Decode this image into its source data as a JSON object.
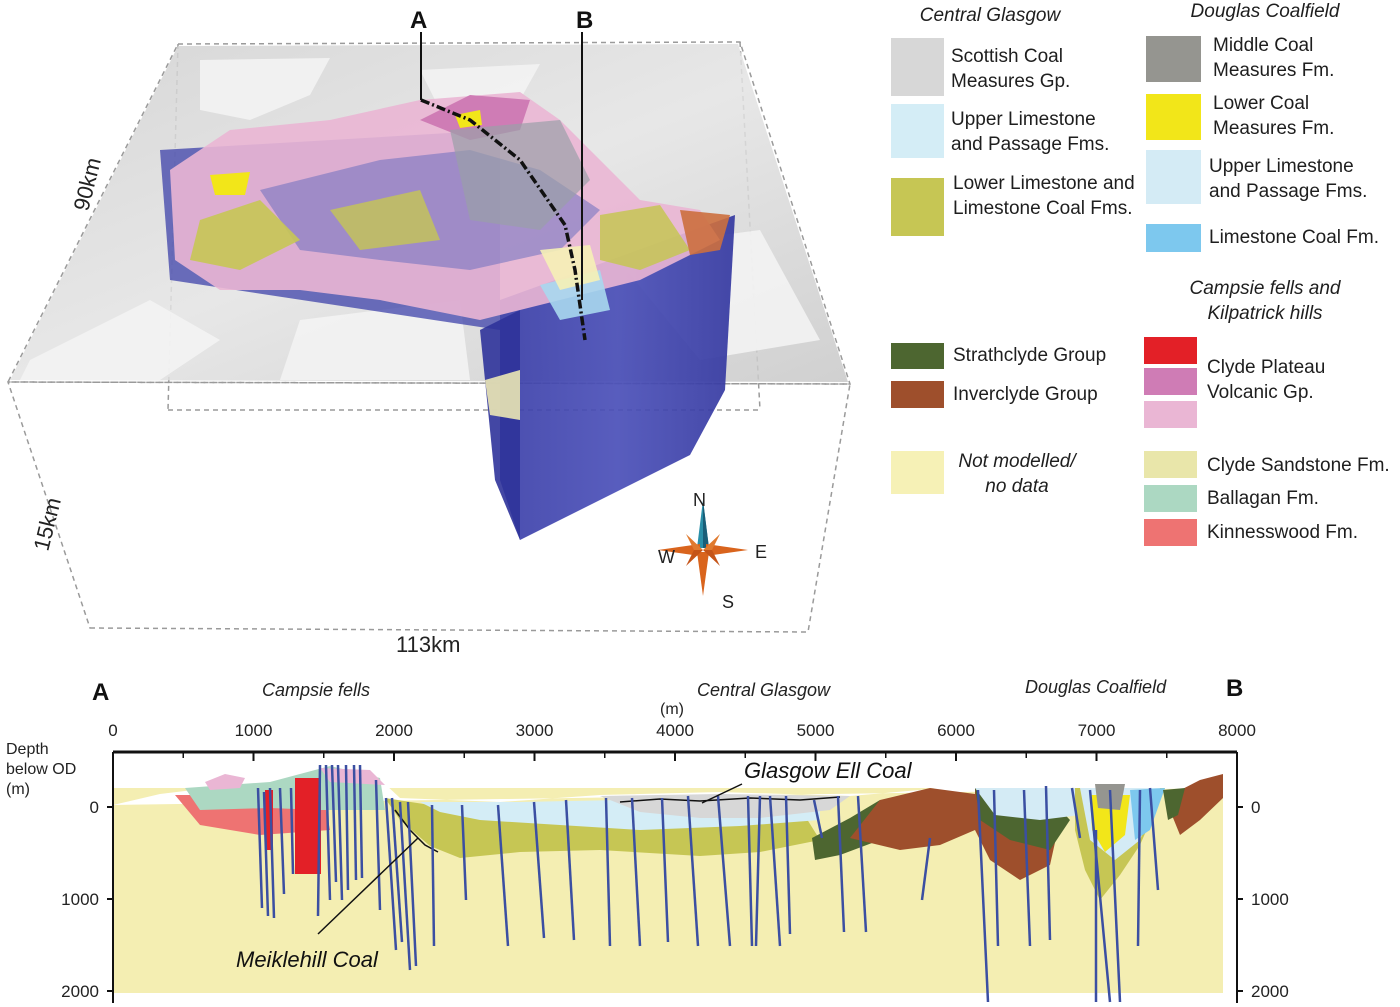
{
  "block": {
    "width_label": "113km",
    "length_label": "90km",
    "depth_label": "15km",
    "line_a": "A",
    "line_b": "B"
  },
  "compass": {
    "n": "N",
    "s": "S",
    "e": "E",
    "w": "W"
  },
  "legend": {
    "groups": {
      "central_glasgow": "Central Glasgow",
      "douglas_coalfield": "Douglas Coalfield",
      "campsie_kilpatrick": "Campsie fells and Kilpatrick hills"
    },
    "central": [
      {
        "label": "Scottish Coal Measures Gp.",
        "color": "#d7d7d7"
      },
      {
        "label": "Upper Limestone and Passage Fms.",
        "color": "#d4edf6"
      },
      {
        "label": "Lower Limestone and Limestone Coal Fms.",
        "color": "#c6c654"
      }
    ],
    "douglas": [
      {
        "label": "Middle Coal Measures Fm.",
        "color": "#959590"
      },
      {
        "label": "Lower Coal Measures Fm.",
        "color": "#f2e619"
      },
      {
        "label": "Upper Limestone and Passage Fms.",
        "color": "#d4ebf5"
      },
      {
        "label": "Limestone Coal Fm.",
        "color": "#7dc8ee"
      }
    ],
    "lower_left": [
      {
        "label": "Strathclyde Group",
        "color": "#4d6630"
      },
      {
        "label": "Inverclyde Group",
        "color": "#9e4f2c"
      },
      {
        "label": "Not modelled/ no data",
        "color": "#f6f1b6"
      }
    ],
    "campsie": {
      "volcanic_label": "Clyde Plateau Volcanic Gp.",
      "volcanic_colors": [
        "#e32027",
        "#cf7cb5",
        "#eab6d4"
      ]
    },
    "lower_right": [
      {
        "label": "Clyde Sandstone Fm.",
        "color": "#e9e6aa"
      },
      {
        "label": "Ballagan Fm.",
        "color": "#acd8c2"
      },
      {
        "label": "Kinnesswood Fm.",
        "color": "#ee7372"
      }
    ]
  },
  "section": {
    "end_a": "A",
    "end_b": "B",
    "region_campsie": "Campsie fells",
    "region_glasgow": "Central Glasgow",
    "region_douglas": "Douglas Coalfield",
    "distance_unit": "(m)",
    "distance_ticks": [
      "0",
      "1000",
      "2000",
      "3000",
      "4000",
      "5000",
      "6000",
      "7000",
      "8000"
    ],
    "depth_title": "Depth below OD (m)",
    "depth_ticks": [
      "0",
      "1000",
      "2000"
    ],
    "annot_glasgow_ell": "Glasgow Ell Coal",
    "annot_meiklehill": "Meiklehill Coal"
  }
}
